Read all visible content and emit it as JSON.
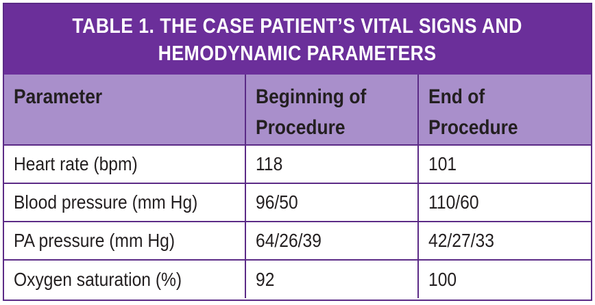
{
  "title": {
    "line1": "TABLE 1.  THE CASE PATIENT’S VITAL SIGNS AND",
    "line2": "HEMODYNAMIC PARAMETERS"
  },
  "columns": {
    "parameter": "Parameter",
    "beginning_line1": "Beginning of",
    "beginning_line2": "Procedure",
    "end_line1": "End of",
    "end_line2": "Procedure"
  },
  "rows": [
    {
      "parameter": "Heart rate (bpm)",
      "beginning": "118",
      "end": "101"
    },
    {
      "parameter": "Blood pressure (mm Hg)",
      "beginning": "96/50",
      "end": "110/60"
    },
    {
      "parameter": "PA pressure (mm Hg)",
      "beginning": "64/26/39",
      "end": "42/27/33"
    },
    {
      "parameter": "Oxygen saturation (%)",
      "beginning": "92",
      "end": "100"
    }
  ],
  "colors": {
    "title_background": "#6b2f9a",
    "header_background": "#a98fcb",
    "border": "#5b2a86",
    "text": "#231f20"
  }
}
